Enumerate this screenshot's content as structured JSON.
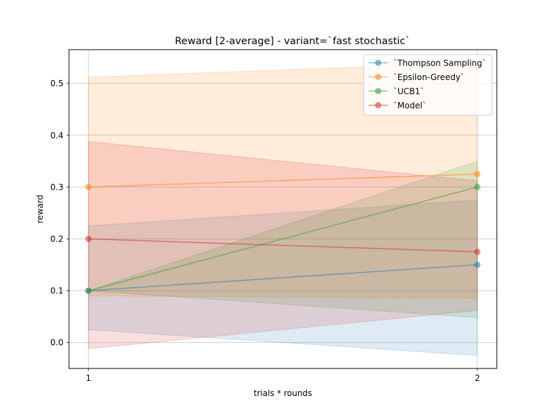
{
  "chart_data": {
    "type": "line",
    "title": "Reward [2-average] - variant=`fast stochastic`",
    "xlabel": "trials * rounds",
    "ylabel": "reward",
    "x": [
      1,
      2
    ],
    "x_ticks": [
      "1",
      "2"
    ],
    "xlim": [
      0.95,
      2.05
    ],
    "ylim": [
      -0.05,
      0.565
    ],
    "y_ticks": [
      "0.0",
      "0.1",
      "0.2",
      "0.3",
      "0.4",
      "0.5"
    ],
    "y_tick_values": [
      0.0,
      0.1,
      0.2,
      0.3,
      0.4,
      0.5
    ],
    "grid": true,
    "legend_position": "top-right",
    "series": [
      {
        "name": "`Thompson Sampling`",
        "values": [
          0.1,
          0.15
        ],
        "band_lower": [
          0.025,
          -0.025
        ],
        "band_upper": [
          0.225,
          0.275
        ],
        "color": "#1f77b4"
      },
      {
        "name": "`Epsilon-Greedy`",
        "values": [
          0.3,
          0.325
        ],
        "band_lower": [
          0.09,
          0.085
        ],
        "band_upper": [
          0.512,
          0.54
        ],
        "color": "#ff7f0e"
      },
      {
        "name": "`UCB1`",
        "values": [
          0.1,
          0.3
        ],
        "band_lower": [
          0.1,
          0.048
        ],
        "band_upper": [
          0.1,
          0.35
        ],
        "color": "#2ca02c"
      },
      {
        "name": "`Model`",
        "values": [
          0.2,
          0.175
        ],
        "band_lower": [
          -0.012,
          0.062
        ],
        "band_upper": [
          0.388,
          0.312
        ],
        "color": "#d62728"
      }
    ]
  }
}
